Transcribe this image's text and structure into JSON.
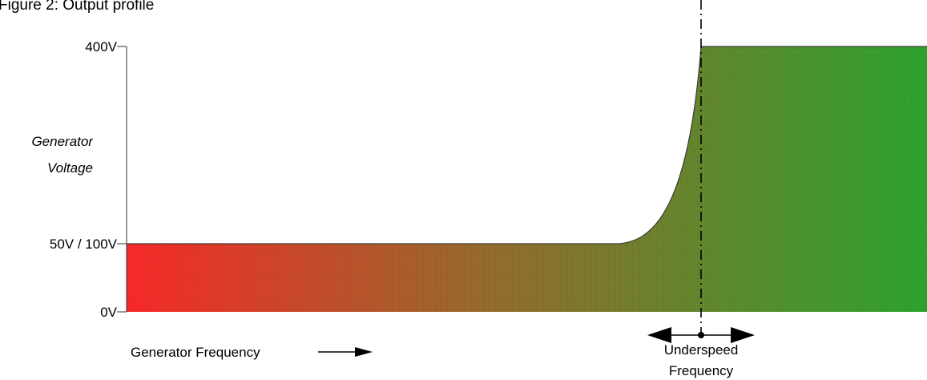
{
  "title": "Figure 2: Output profile",
  "y_axis": {
    "label_line1": "Generator",
    "label_line2": "Voltage",
    "ticks": [
      "400V",
      "50V / 100V",
      "0V"
    ]
  },
  "x_axis": {
    "label": "Generator Frequency"
  },
  "marker": {
    "label_line1": "Underspeed",
    "label_line2": "Frequency"
  },
  "colors": {
    "low": "#ff2a2a",
    "mid": "#8a7a2e",
    "high": "#2fa82f"
  }
}
